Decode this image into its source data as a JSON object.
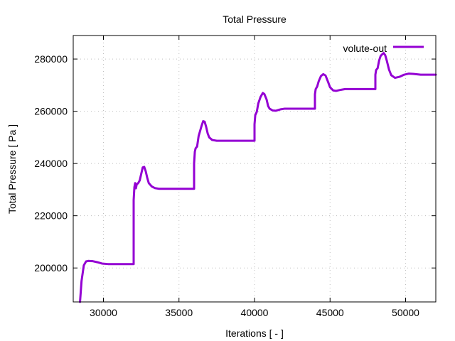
{
  "chart_data": {
    "type": "line",
    "title": "Total Pressure",
    "xlabel": "Iterations [ - ]",
    "ylabel": "Total Pressure [ Pa ]",
    "xlim": [
      28000,
      52000
    ],
    "ylim": [
      187000,
      289000
    ],
    "xticks": [
      30000,
      35000,
      40000,
      45000,
      50000
    ],
    "yticks": [
      200000,
      220000,
      240000,
      260000,
      280000
    ],
    "grid": true,
    "legend_position": "top-right",
    "series": [
      {
        "name": "volute-out",
        "color": "#9400d3",
        "points": [
          [
            28450,
            187000
          ],
          [
            28550,
            195000
          ],
          [
            28700,
            201000
          ],
          [
            28850,
            202500
          ],
          [
            29000,
            202700
          ],
          [
            29300,
            202600
          ],
          [
            29600,
            202200
          ],
          [
            29900,
            201700
          ],
          [
            30300,
            201500
          ],
          [
            31000,
            201500
          ],
          [
            32000,
            201500
          ],
          [
            32000,
            226000
          ],
          [
            32050,
            231000
          ],
          [
            32100,
            232500
          ],
          [
            32150,
            230500
          ],
          [
            32200,
            232000
          ],
          [
            32300,
            232500
          ],
          [
            32400,
            233500
          ],
          [
            32500,
            236000
          ],
          [
            32600,
            238500
          ],
          [
            32700,
            238700
          ],
          [
            32800,
            237000
          ],
          [
            32900,
            234500
          ],
          [
            33000,
            232500
          ],
          [
            33200,
            231200
          ],
          [
            33400,
            230600
          ],
          [
            33700,
            230300
          ],
          [
            34000,
            230300
          ],
          [
            35000,
            230300
          ],
          [
            36000,
            230300
          ],
          [
            36000,
            240000
          ],
          [
            36050,
            244500
          ],
          [
            36100,
            245800
          ],
          [
            36200,
            246500
          ],
          [
            36300,
            250500
          ],
          [
            36400,
            252500
          ],
          [
            36500,
            254500
          ],
          [
            36600,
            256200
          ],
          [
            36700,
            256000
          ],
          [
            36800,
            254000
          ],
          [
            36900,
            251500
          ],
          [
            37000,
            250000
          ],
          [
            37200,
            249000
          ],
          [
            37500,
            248700
          ],
          [
            38000,
            248700
          ],
          [
            40000,
            248700
          ],
          [
            40000,
            255000
          ],
          [
            40050,
            258500
          ],
          [
            40150,
            259800
          ],
          [
            40250,
            263000
          ],
          [
            40400,
            265500
          ],
          [
            40550,
            267000
          ],
          [
            40650,
            266600
          ],
          [
            40800,
            264500
          ],
          [
            40900,
            262000
          ],
          [
            41000,
            261000
          ],
          [
            41200,
            260300
          ],
          [
            41400,
            260200
          ],
          [
            41700,
            260700
          ],
          [
            42000,
            261000
          ],
          [
            44000,
            261000
          ],
          [
            44000,
            266500
          ],
          [
            44050,
            268500
          ],
          [
            44150,
            269500
          ],
          [
            44250,
            271500
          ],
          [
            44400,
            273500
          ],
          [
            44550,
            274200
          ],
          [
            44700,
            273700
          ],
          [
            44850,
            271500
          ],
          [
            45000,
            269200
          ],
          [
            45200,
            268000
          ],
          [
            45400,
            267800
          ],
          [
            45700,
            268200
          ],
          [
            46000,
            268500
          ],
          [
            48000,
            268500
          ],
          [
            48000,
            274000
          ],
          [
            48050,
            275800
          ],
          [
            48150,
            276500
          ],
          [
            48250,
            279500
          ],
          [
            48350,
            281200
          ],
          [
            48450,
            281800
          ],
          [
            48550,
            282300
          ],
          [
            48650,
            281500
          ],
          [
            48750,
            279500
          ],
          [
            48900,
            276000
          ],
          [
            49050,
            273800
          ],
          [
            49300,
            272800
          ],
          [
            49600,
            273200
          ],
          [
            49900,
            274000
          ],
          [
            50200,
            274400
          ],
          [
            50500,
            274300
          ],
          [
            51000,
            274000
          ],
          [
            52000,
            274000
          ]
        ]
      }
    ]
  }
}
